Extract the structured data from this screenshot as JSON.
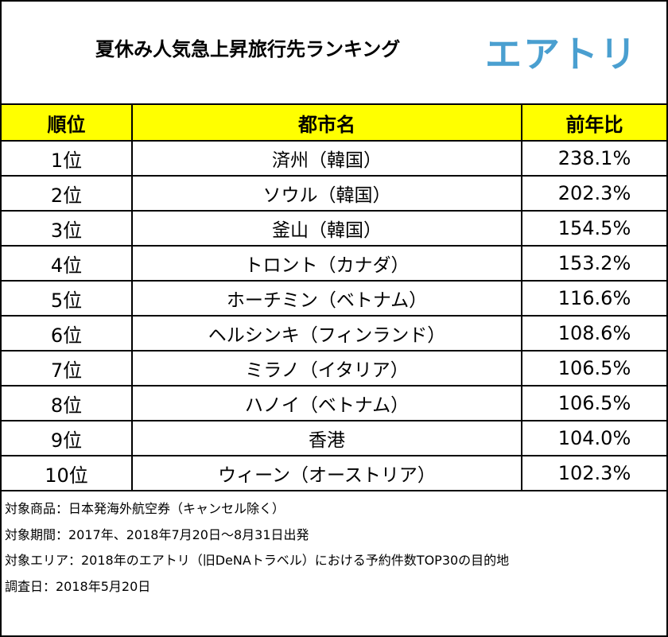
{
  "title": "夏休み人気急上昇旅行先ランキング",
  "logo_text": "エアトリ",
  "brand_color": "#4a9fd0",
  "header_color": "#ffff00",
  "table": {
    "headers": [
      "順位",
      "都市名",
      "前年比"
    ],
    "rows": [
      {
        "rank": "1位",
        "city": "済州（韓国）",
        "ratio": "238.1%"
      },
      {
        "rank": "2位",
        "city": "ソウル（韓国）",
        "ratio": "202.3%"
      },
      {
        "rank": "3位",
        "city": "釜山（韓国）",
        "ratio": "154.5%"
      },
      {
        "rank": "4位",
        "city": "トロント（カナダ）",
        "ratio": "153.2%"
      },
      {
        "rank": "5位",
        "city": "ホーチミン（ベトナム）",
        "ratio": "116.6%"
      },
      {
        "rank": "6位",
        "city": "ヘルシンキ（フィンランド）",
        "ratio": "108.6%"
      },
      {
        "rank": "7位",
        "city": "ミラノ（イタリア）",
        "ratio": "106.5%"
      },
      {
        "rank": "8位",
        "city": "ハノイ（ベトナム）",
        "ratio": "106.5%"
      },
      {
        "rank": "9位",
        "city": "香港",
        "ratio": "104.0%"
      },
      {
        "rank": "10位",
        "city": "ウィーン（オーストリア）",
        "ratio": "102.3%"
      }
    ]
  },
  "notes": [
    "対象商品：日本発海外航空券（キャンセル除く）",
    "対象期間：2017年、2018年7月20日～8月31日出発",
    "対象エリア：2018年のエアトリ（旧DeNAトラベル）における予約件数TOP30の目的地",
    "調査日：2018年5月20日"
  ]
}
